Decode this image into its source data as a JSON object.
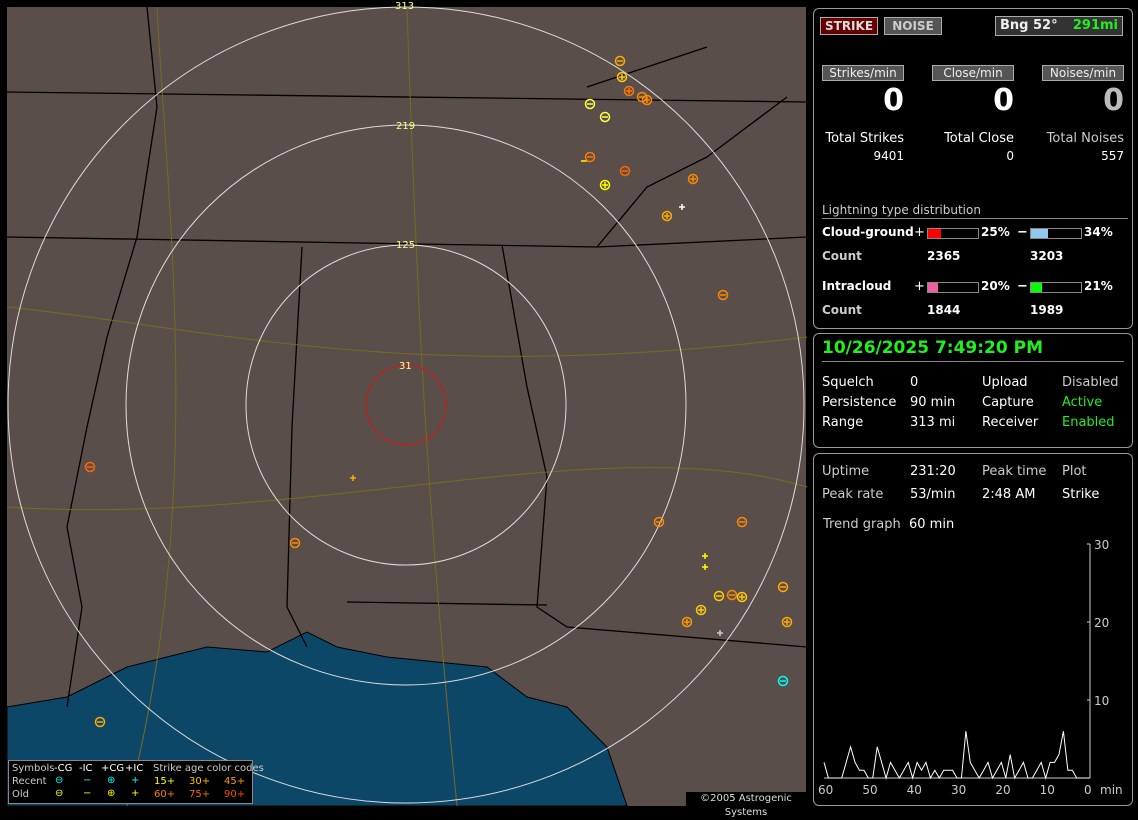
{
  "map": {
    "ring_labels": [
      "313",
      "219",
      "125",
      "31"
    ],
    "copyright": "©2005 Astrogenic Systems",
    "legend": {
      "symbols_label": "Symbols",
      "headers": [
        "-CG",
        "-IC",
        "+CG",
        "+IC"
      ],
      "recent_label": "Recent",
      "old_label": "Old",
      "age_title": "Strike age color codes",
      "ages_recent": [
        "15+",
        "30+",
        "45+"
      ],
      "ages_old": [
        "60+",
        "75+",
        "90+"
      ],
      "age_colors": [
        "#ffff00",
        "#ffc000",
        "#ff9a00",
        "#ff8000",
        "#ff6a00",
        "#ff4a00"
      ]
    }
  },
  "top": {
    "strike_tab": "STRIKE",
    "noise_tab": "NOISE",
    "bearing": "Bng 52°",
    "distance": "291mi",
    "rates": [
      {
        "label": "Strikes/min",
        "value": "0"
      },
      {
        "label": "Close/min",
        "value": "0"
      },
      {
        "label": "Noises/min",
        "value": "0"
      }
    ],
    "totals": [
      {
        "label": "Total Strikes",
        "value": "9401"
      },
      {
        "label": "Total Close",
        "value": "0"
      },
      {
        "label": "Total Noises",
        "value": "557"
      }
    ],
    "dist_title": "Lightning type distribution",
    "cg": {
      "label": "Cloud-ground",
      "plus": "+",
      "minus": "−",
      "plus_pct": "25%",
      "minus_pct": "34%",
      "plus_frac": 0.25,
      "minus_frac": 0.34,
      "count_label": "Count",
      "plus_count": "2365",
      "minus_count": "3203",
      "plus_color": "#ff0000",
      "minus_color": "#90c8f0"
    },
    "ic": {
      "label": "Intracloud",
      "plus": "+",
      "minus": "−",
      "plus_pct": "20%",
      "minus_pct": "21%",
      "plus_frac": 0.2,
      "minus_frac": 0.21,
      "count_label": "Count",
      "plus_count": "1844",
      "minus_count": "1989",
      "plus_color": "#f060a0",
      "minus_color": "#00ff00"
    }
  },
  "status": {
    "datetime": "10/26/2025 7:49:20 PM",
    "rows": [
      {
        "label": "Squelch",
        "value": "0",
        "label2": "Upload",
        "value2": "Disabled"
      },
      {
        "label": "Persistence",
        "value": "90 min",
        "label2": "Capture",
        "value2": "Active"
      },
      {
        "label": "Range",
        "value": "313 mi",
        "label2": "Receiver",
        "value2": "Enabled"
      }
    ]
  },
  "stats": {
    "uptime_label": "Uptime",
    "uptime": "231:20",
    "peak_time_label": "Peak time",
    "plot_label": "Plot",
    "peak_rate_label": "Peak rate",
    "peak_rate": "53/min",
    "peak_time": "2:48 AM",
    "plot": "Strike",
    "trend_label": "Trend graph",
    "trend": "60 min",
    "y_ticks": [
      "30",
      "20",
      "10"
    ],
    "x_ticks": [
      "60",
      "50",
      "40",
      "30",
      "20",
      "10",
      "0"
    ],
    "x_unit": "min",
    "trend_values": [
      2,
      0,
      0,
      0,
      0,
      2,
      4,
      2,
      1,
      1,
      0,
      0,
      4,
      2,
      0,
      2,
      1,
      0,
      1,
      2,
      0,
      2,
      1,
      2,
      0,
      1,
      0,
      1,
      1,
      1,
      0,
      0,
      6,
      2,
      1,
      0,
      1,
      2,
      0,
      1,
      2,
      0,
      3,
      0,
      1,
      2,
      0,
      0,
      1,
      2,
      0,
      2,
      2,
      3,
      6,
      1,
      1,
      0,
      0,
      0,
      0
    ]
  }
}
